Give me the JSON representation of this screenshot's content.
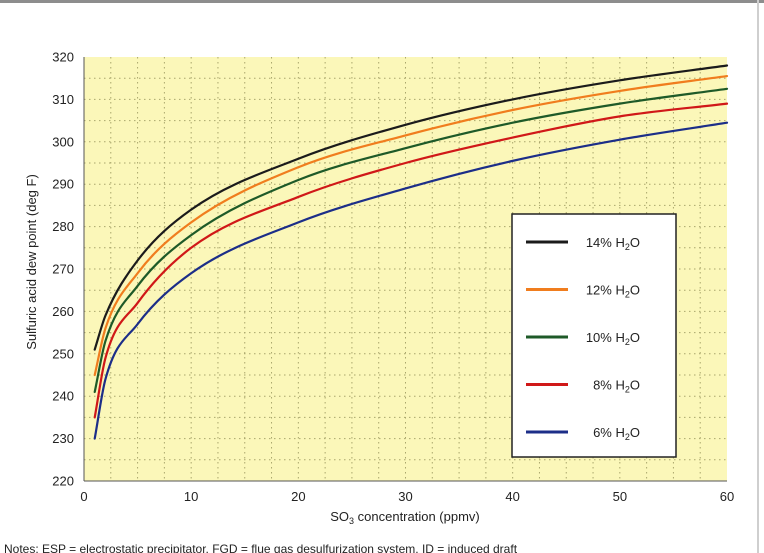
{
  "chart_data": {
    "type": "line",
    "title": "",
    "xlabel": "SO3 concentration (ppmv)",
    "ylabel": "Sulfuric acid dew point (deg F)",
    "xlim": [
      0,
      60
    ],
    "ylim": [
      220,
      320
    ],
    "x_ticks": [
      "0",
      "10",
      "20",
      "30",
      "40",
      "50",
      "60"
    ],
    "y_ticks": [
      "220",
      "230",
      "240",
      "250",
      "260",
      "270",
      "280",
      "290",
      "300",
      "310",
      "320"
    ],
    "grid": true,
    "legend_position": "right",
    "series": [
      {
        "name": "14% H2O",
        "color": "#1b1b1b",
        "x": [
          1,
          2,
          5,
          10,
          20,
          30,
          40,
          50,
          60
        ],
        "y": [
          251,
          259,
          272,
          284,
          296,
          304,
          310,
          314.5,
          318
        ]
      },
      {
        "name": "12% H2O",
        "color": "#f07d1e",
        "x": [
          1,
          2,
          5,
          10,
          20,
          30,
          40,
          50,
          60
        ],
        "y": [
          245,
          256,
          269,
          281,
          294,
          301.5,
          307.5,
          312,
          315.5
        ]
      },
      {
        "name": "10% H2O",
        "color": "#1e5a28",
        "x": [
          1,
          2,
          5,
          10,
          20,
          30,
          40,
          50,
          60
        ],
        "y": [
          241,
          253,
          266,
          278,
          291,
          298.5,
          304.5,
          309,
          312.5
        ]
      },
      {
        "name": "8% H2O",
        "color": "#d01818",
        "x": [
          1,
          2,
          5,
          10,
          20,
          30,
          40,
          50,
          60
        ],
        "y": [
          235,
          249,
          262,
          275,
          287,
          295,
          301,
          306,
          309
        ]
      },
      {
        "name": "6% H2O",
        "color": "#1c2e88",
        "x": [
          1,
          2,
          5,
          10,
          20,
          30,
          40,
          50,
          60
        ],
        "y": [
          230,
          244,
          257,
          269,
          281,
          289,
          295.5,
          300.5,
          304.5
        ]
      }
    ]
  },
  "footnote": "Notes: ESP = electrostatic precipitator, FGD = flue gas desulfurization system, ID = induced draft"
}
